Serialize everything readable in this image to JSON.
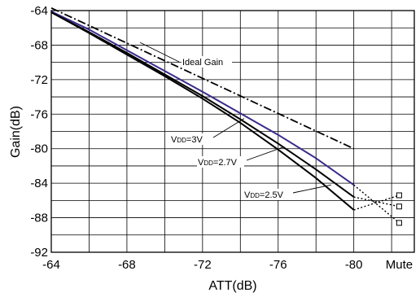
{
  "chart_data": {
    "type": "line",
    "xlabel": "ATT(dB)",
    "ylabel": "Gain(dB)",
    "x_ticks": [
      "-64",
      "-68",
      "-72",
      "-76",
      "-80",
      "Mute"
    ],
    "y_ticks": [
      "-64",
      "-68",
      "-72",
      "-76",
      "-80",
      "-84",
      "-88",
      "-92"
    ],
    "xlim": [
      -64,
      -83.2
    ],
    "ylim": [
      -92,
      -64
    ],
    "grid": true,
    "series": [
      {
        "id": "ideal",
        "style": "dashdot",
        "color": "#000000",
        "x": [
          -64,
          -80
        ],
        "y": [
          -63.7,
          -80.0
        ]
      },
      {
        "id": "vdd3",
        "style": "solid",
        "color": "#3b2a8c",
        "x": [
          -64,
          -66,
          -68,
          -70,
          -72,
          -74,
          -76,
          -78,
          -80
        ],
        "y": [
          -64.1,
          -66.2,
          -68.6,
          -71.0,
          -73.4,
          -75.9,
          -78.4,
          -81.1,
          -84.2
        ]
      },
      {
        "id": "vdd27",
        "style": "solid",
        "color": "#000000",
        "x": [
          -64,
          -66,
          -68,
          -70,
          -72,
          -74,
          -76,
          -78,
          -80
        ],
        "y": [
          -64.2,
          -66.5,
          -68.9,
          -71.4,
          -73.9,
          -76.6,
          -79.4,
          -82.4,
          -85.6
        ]
      },
      {
        "id": "vdd25",
        "style": "solid",
        "color": "#000000",
        "x": [
          -64,
          -66,
          -68,
          -70,
          -72,
          -74,
          -76,
          -78,
          -80
        ],
        "y": [
          -64.2,
          -66.6,
          -69.1,
          -71.6,
          -74.2,
          -77.0,
          -80.1,
          -83.4,
          -87.1
        ]
      }
    ],
    "mute_lines": [
      {
        "from": [
          -80,
          -84.2
        ],
        "to": [
          -82.4,
          -88.6
        ]
      },
      {
        "from": [
          -80,
          -85.6
        ],
        "to": [
          -82.4,
          -86.7
        ]
      },
      {
        "from": [
          -80,
          -87.1
        ],
        "to": [
          -82.4,
          -85.4
        ]
      }
    ],
    "mute_markers": [
      {
        "x": -82.4,
        "y": -85.4
      },
      {
        "x": -82.4,
        "y": -86.7
      },
      {
        "x": -82.4,
        "y": -88.6
      }
    ],
    "annotations": [
      {
        "id": "ideal-gain",
        "text": "Ideal Gain",
        "sub": "",
        "suffix": "",
        "anchor": [
          -68.7,
          -67.7
        ]
      },
      {
        "id": "vdd3",
        "text": "V",
        "sub": "DD",
        "suffix": "=3V",
        "anchor": [
          -74.2,
          -76.5
        ]
      },
      {
        "id": "vdd27",
        "text": "V",
        "sub": "DD",
        "suffix": "=2.7V",
        "anchor": [
          -76.3,
          -79.8
        ]
      },
      {
        "id": "vdd25",
        "text": "V",
        "sub": "DD",
        "suffix": "=2.5V",
        "anchor": [
          -78.8,
          -84.2
        ]
      }
    ]
  }
}
